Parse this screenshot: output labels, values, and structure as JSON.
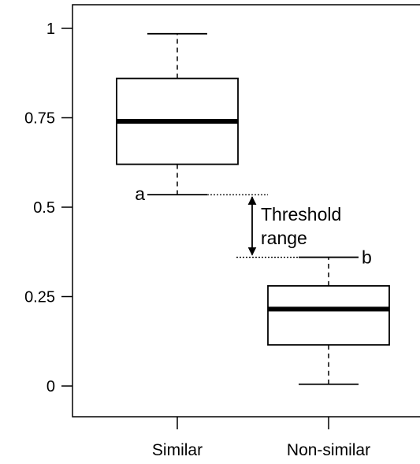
{
  "chart_data": {
    "type": "boxplot",
    "title": "",
    "xlabel": "",
    "ylabel": "",
    "ylim": [
      -0.09,
      1.07
    ],
    "y_ticks": [
      {
        "value": 1,
        "label": "1"
      },
      {
        "value": 0.75,
        "label": "0.75"
      },
      {
        "value": 0.5,
        "label": "0.5"
      },
      {
        "value": 0.25,
        "label": "0.25"
      },
      {
        "value": 0,
        "label": "0"
      }
    ],
    "categories": [
      "Similar",
      "Non-similar"
    ],
    "boxes": [
      {
        "category": "Similar",
        "whisker_low": 0.535,
        "q1": 0.62,
        "median": 0.74,
        "q3": 0.86,
        "whisker_high": 0.985
      },
      {
        "category": "Non-similar",
        "whisker_low": 0.005,
        "q1": 0.115,
        "median": 0.215,
        "q3": 0.28,
        "whisker_high": 0.36
      }
    ],
    "annotations": {
      "a": {
        "label": "a",
        "value": 0.535
      },
      "b": {
        "label": "b",
        "value": 0.36
      },
      "threshold_line1": "Threshold",
      "threshold_line2": "range"
    },
    "grid": false
  }
}
